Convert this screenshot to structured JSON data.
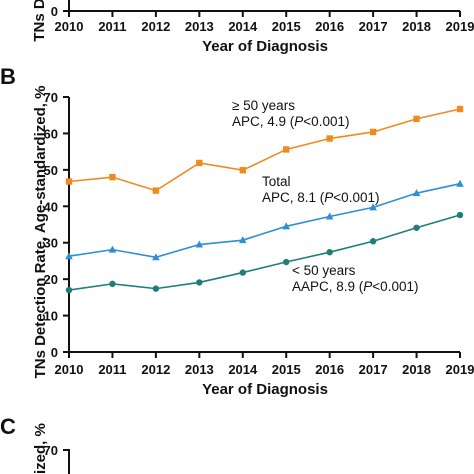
{
  "top_panel": {
    "ylabel": "TNs D",
    "y_tick": "0",
    "xlabel": "Year of Diagnosis",
    "x_categories": [
      "2010",
      "2011",
      "2012",
      "2013",
      "2014",
      "2015",
      "2016",
      "2017",
      "2018",
      "2019"
    ]
  },
  "panel_b": {
    "letter": "B"
  },
  "panel_c": {
    "letter": "C",
    "ylabel": "ized, %",
    "y_tick": "70"
  },
  "chart_data": {
    "type": "line",
    "categories": [
      "2010",
      "2011",
      "2012",
      "2013",
      "2014",
      "2015",
      "2016",
      "2017",
      "2018",
      "2019"
    ],
    "ylim": [
      0,
      70
    ],
    "yticks": [
      0,
      10,
      20,
      30,
      40,
      50,
      60,
      70
    ],
    "xlabel": "Year of Diagnosis",
    "ylabel": "TNs Detection Rate, Age-standardized, %",
    "grid": false,
    "series": [
      {
        "name": "≥ 50 years",
        "stat_prefix": "APC, 4.9 (",
        "stat_p": "P",
        "stat_suffix": "<0.001)",
        "color": "#f08a1e",
        "marker": "square",
        "values": [
          46.8,
          48.0,
          44.3,
          51.9,
          49.9,
          55.6,
          58.6,
          60.4,
          64.0,
          66.7
        ]
      },
      {
        "name": "Total",
        "stat_prefix": "APC, 8.1 (",
        "stat_p": "P",
        "stat_suffix": "<0.001)",
        "color": "#2e8fd6",
        "marker": "triangle",
        "values": [
          26.3,
          28.1,
          26.0,
          29.5,
          30.7,
          34.5,
          37.2,
          39.7,
          43.6,
          46.2
        ]
      },
      {
        "name": "< 50 years",
        "stat_prefix": "AAPC, 8.9 (",
        "stat_p": "P",
        "stat_suffix": "<0.001)",
        "color": "#1f7d7a",
        "marker": "circle",
        "values": [
          17.0,
          18.7,
          17.4,
          19.1,
          21.8,
          24.7,
          27.4,
          30.4,
          34.1,
          37.6
        ]
      }
    ]
  }
}
